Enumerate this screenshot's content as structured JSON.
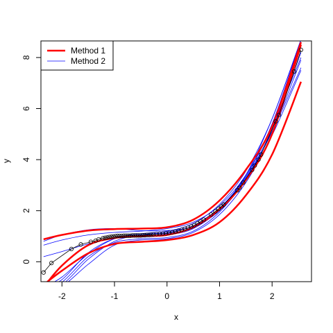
{
  "chart_data": {
    "type": "line",
    "title": "",
    "xlabel": "x",
    "ylabel": "y",
    "xlim": [
      -2.4,
      2.75
    ],
    "ylim": [
      -0.78,
      8.65
    ],
    "xticks": [
      -2,
      -1,
      0,
      1,
      2
    ],
    "xtick_labels": [
      "-2",
      "-1",
      "0",
      "1",
      "2"
    ],
    "yticks": [
      0,
      2,
      4,
      6,
      8
    ],
    "ytick_labels": [
      "0",
      "2",
      "4",
      "6",
      "8"
    ],
    "grid": false,
    "legend": {
      "position": "top-left",
      "entries": [
        {
          "label": "Method 1",
          "color": "#ff0000",
          "width": "thick"
        },
        {
          "label": "Method 2",
          "color": "#0000ff",
          "width": "thin"
        }
      ]
    },
    "colors": {
      "method1": "#ff0000",
      "method2": "#0000ff",
      "points": "#000000"
    },
    "series_points": {
      "name": "",
      "style": "points-connected-by-line",
      "x": [
        -2.35,
        -2.2,
        -1.82,
        -1.64,
        -1.45,
        -1.36,
        -1.3,
        -1.22,
        -1.18,
        -1.14,
        -1.1,
        -1.06,
        -1.02,
        -0.98,
        -0.94,
        -0.9,
        -0.86,
        -0.82,
        -0.78,
        -0.74,
        -0.7,
        -0.66,
        -0.62,
        -0.58,
        -0.54,
        -0.5,
        -0.46,
        -0.42,
        -0.38,
        -0.34,
        -0.3,
        -0.26,
        -0.2,
        -0.14,
        -0.08,
        -0.02,
        0.04,
        0.1,
        0.16,
        0.22,
        0.28,
        0.34,
        0.4,
        0.46,
        0.52,
        0.58,
        0.64,
        0.7,
        0.84,
        0.92,
        0.98,
        1.04,
        1.08,
        1.34,
        1.38,
        1.45,
        1.62,
        1.67,
        1.74,
        1.79,
        2.07,
        2.13,
        2.42,
        2.55
      ],
      "y": [
        -0.42,
        -0.05,
        0.5,
        0.68,
        0.78,
        0.82,
        0.88,
        0.92,
        0.94,
        0.95,
        0.97,
        0.98,
        0.99,
        1.0,
        1.01,
        1.01,
        1.01,
        1.02,
        1.02,
        1.02,
        1.02,
        1.03,
        1.03,
        1.03,
        1.03,
        1.03,
        1.04,
        1.04,
        1.05,
        1.05,
        1.06,
        1.07,
        1.08,
        1.09,
        1.1,
        1.11,
        1.13,
        1.15,
        1.18,
        1.21,
        1.25,
        1.29,
        1.33,
        1.38,
        1.43,
        1.5,
        1.57,
        1.65,
        1.85,
        1.97,
        2.07,
        2.17,
        2.24,
        2.8,
        2.9,
        3.1,
        3.6,
        3.77,
        4.0,
        4.2,
        5.5,
        5.75,
        7.45,
        8.3
      ]
    },
    "series": [
      {
        "name": "Method 1",
        "group": "method1",
        "x": [
          -2.35,
          -2.0,
          -1.5,
          -1.0,
          -0.5,
          0.0,
          0.5,
          1.0,
          1.5,
          2.0,
          2.55
        ],
        "y": [
          0.88,
          1.05,
          1.22,
          1.28,
          1.3,
          1.35,
          1.65,
          2.4,
          3.6,
          5.3,
          8.6
        ]
      },
      {
        "name": "Method 1",
        "group": "method1",
        "x": [
          -2.35,
          -2.0,
          -1.5,
          -1.0,
          -0.5,
          0.0,
          0.5,
          1.0,
          1.5,
          2.0,
          2.55
        ],
        "y": [
          -0.9,
          -0.35,
          0.33,
          0.7,
          0.78,
          0.85,
          1.05,
          1.55,
          2.6,
          4.2,
          7.05
        ]
      },
      {
        "name": "Method 1",
        "group": "method1",
        "x": [
          -2.35,
          -2.0,
          -1.5,
          -1.0,
          -0.5,
          0.0,
          0.5,
          1.0,
          1.5,
          2.0,
          2.55
        ],
        "y": [
          -1.0,
          -0.15,
          0.65,
          0.93,
          1.0,
          1.05,
          1.35,
          2.05,
          3.2,
          5.0,
          8.5
        ]
      },
      {
        "name": "Method 2",
        "group": "method2",
        "x": [
          -2.35,
          -2.0,
          -1.5,
          -1.0,
          -0.5,
          0.0,
          0.5,
          1.0,
          1.5,
          2.0,
          2.55
        ],
        "y": [
          0.8,
          1.05,
          1.25,
          1.3,
          1.22,
          1.22,
          1.4,
          2.1,
          3.3,
          5.2,
          8.2
        ]
      },
      {
        "name": "Method 2",
        "group": "method2",
        "x": [
          -2.35,
          -2.0,
          -1.5,
          -1.0,
          -0.5,
          0.0,
          0.5,
          1.0,
          1.5,
          2.0,
          2.55
        ],
        "y": [
          0.65,
          0.85,
          1.05,
          1.15,
          1.2,
          1.3,
          1.55,
          2.2,
          3.4,
          5.4,
          8.7
        ]
      },
      {
        "name": "Method 2",
        "group": "method2",
        "x": [
          -2.35,
          -2.0,
          -1.5,
          -1.0,
          -0.5,
          0.0,
          0.5,
          1.0,
          1.5,
          2.0,
          2.55
        ],
        "y": [
          0.2,
          0.4,
          0.7,
          0.95,
          1.1,
          1.2,
          1.5,
          2.25,
          3.55,
          5.6,
          8.7
        ]
      },
      {
        "name": "Method 2",
        "group": "method2",
        "x": [
          -2.35,
          -2.0,
          -1.5,
          -1.0,
          -0.5,
          0.0,
          0.5,
          1.0,
          1.5,
          2.0,
          2.55
        ],
        "y": [
          -1.0,
          -0.6,
          0.3,
          0.9,
          1.05,
          1.1,
          1.35,
          2.0,
          3.2,
          5.1,
          7.6
        ]
      },
      {
        "name": "Method 2",
        "group": "method2",
        "x": [
          -2.35,
          -2.0,
          -1.5,
          -1.0,
          -0.5,
          0.0,
          0.5,
          1.0,
          1.5,
          2.0,
          2.55
        ],
        "y": [
          -1.0,
          -0.9,
          0.1,
          0.8,
          1.05,
          1.15,
          1.4,
          2.1,
          3.35,
          5.3,
          8.0
        ]
      },
      {
        "name": "Method 2",
        "group": "method2",
        "x": [
          -2.35,
          -2.0,
          -1.5,
          -1.0,
          -0.5,
          0.0,
          0.5,
          1.0,
          1.5,
          2.0,
          2.55
        ],
        "y": [
          -1.0,
          -0.8,
          0.2,
          0.75,
          0.9,
          0.95,
          1.2,
          1.95,
          3.25,
          5.1,
          7.9
        ]
      },
      {
        "name": "Method 2",
        "group": "method2",
        "x": [
          -2.35,
          -2.0,
          -1.5,
          -1.0,
          -0.5,
          0.0,
          0.5,
          1.0,
          1.5,
          2.0,
          2.55
        ],
        "y": [
          -1.0,
          -0.95,
          -0.1,
          0.65,
          0.85,
          0.9,
          1.15,
          1.85,
          3.1,
          4.95,
          7.5
        ]
      },
      {
        "name": "Method 2",
        "group": "method2",
        "x": [
          -2.35,
          -2.0,
          -1.5,
          -1.0,
          -0.5,
          0.0,
          0.5,
          1.0,
          1.5,
          2.0,
          2.55
        ],
        "y": [
          -1.0,
          -0.7,
          0.35,
          0.9,
          1.0,
          1.05,
          1.3,
          2.05,
          3.4,
          5.6,
          8.7
        ]
      }
    ]
  }
}
